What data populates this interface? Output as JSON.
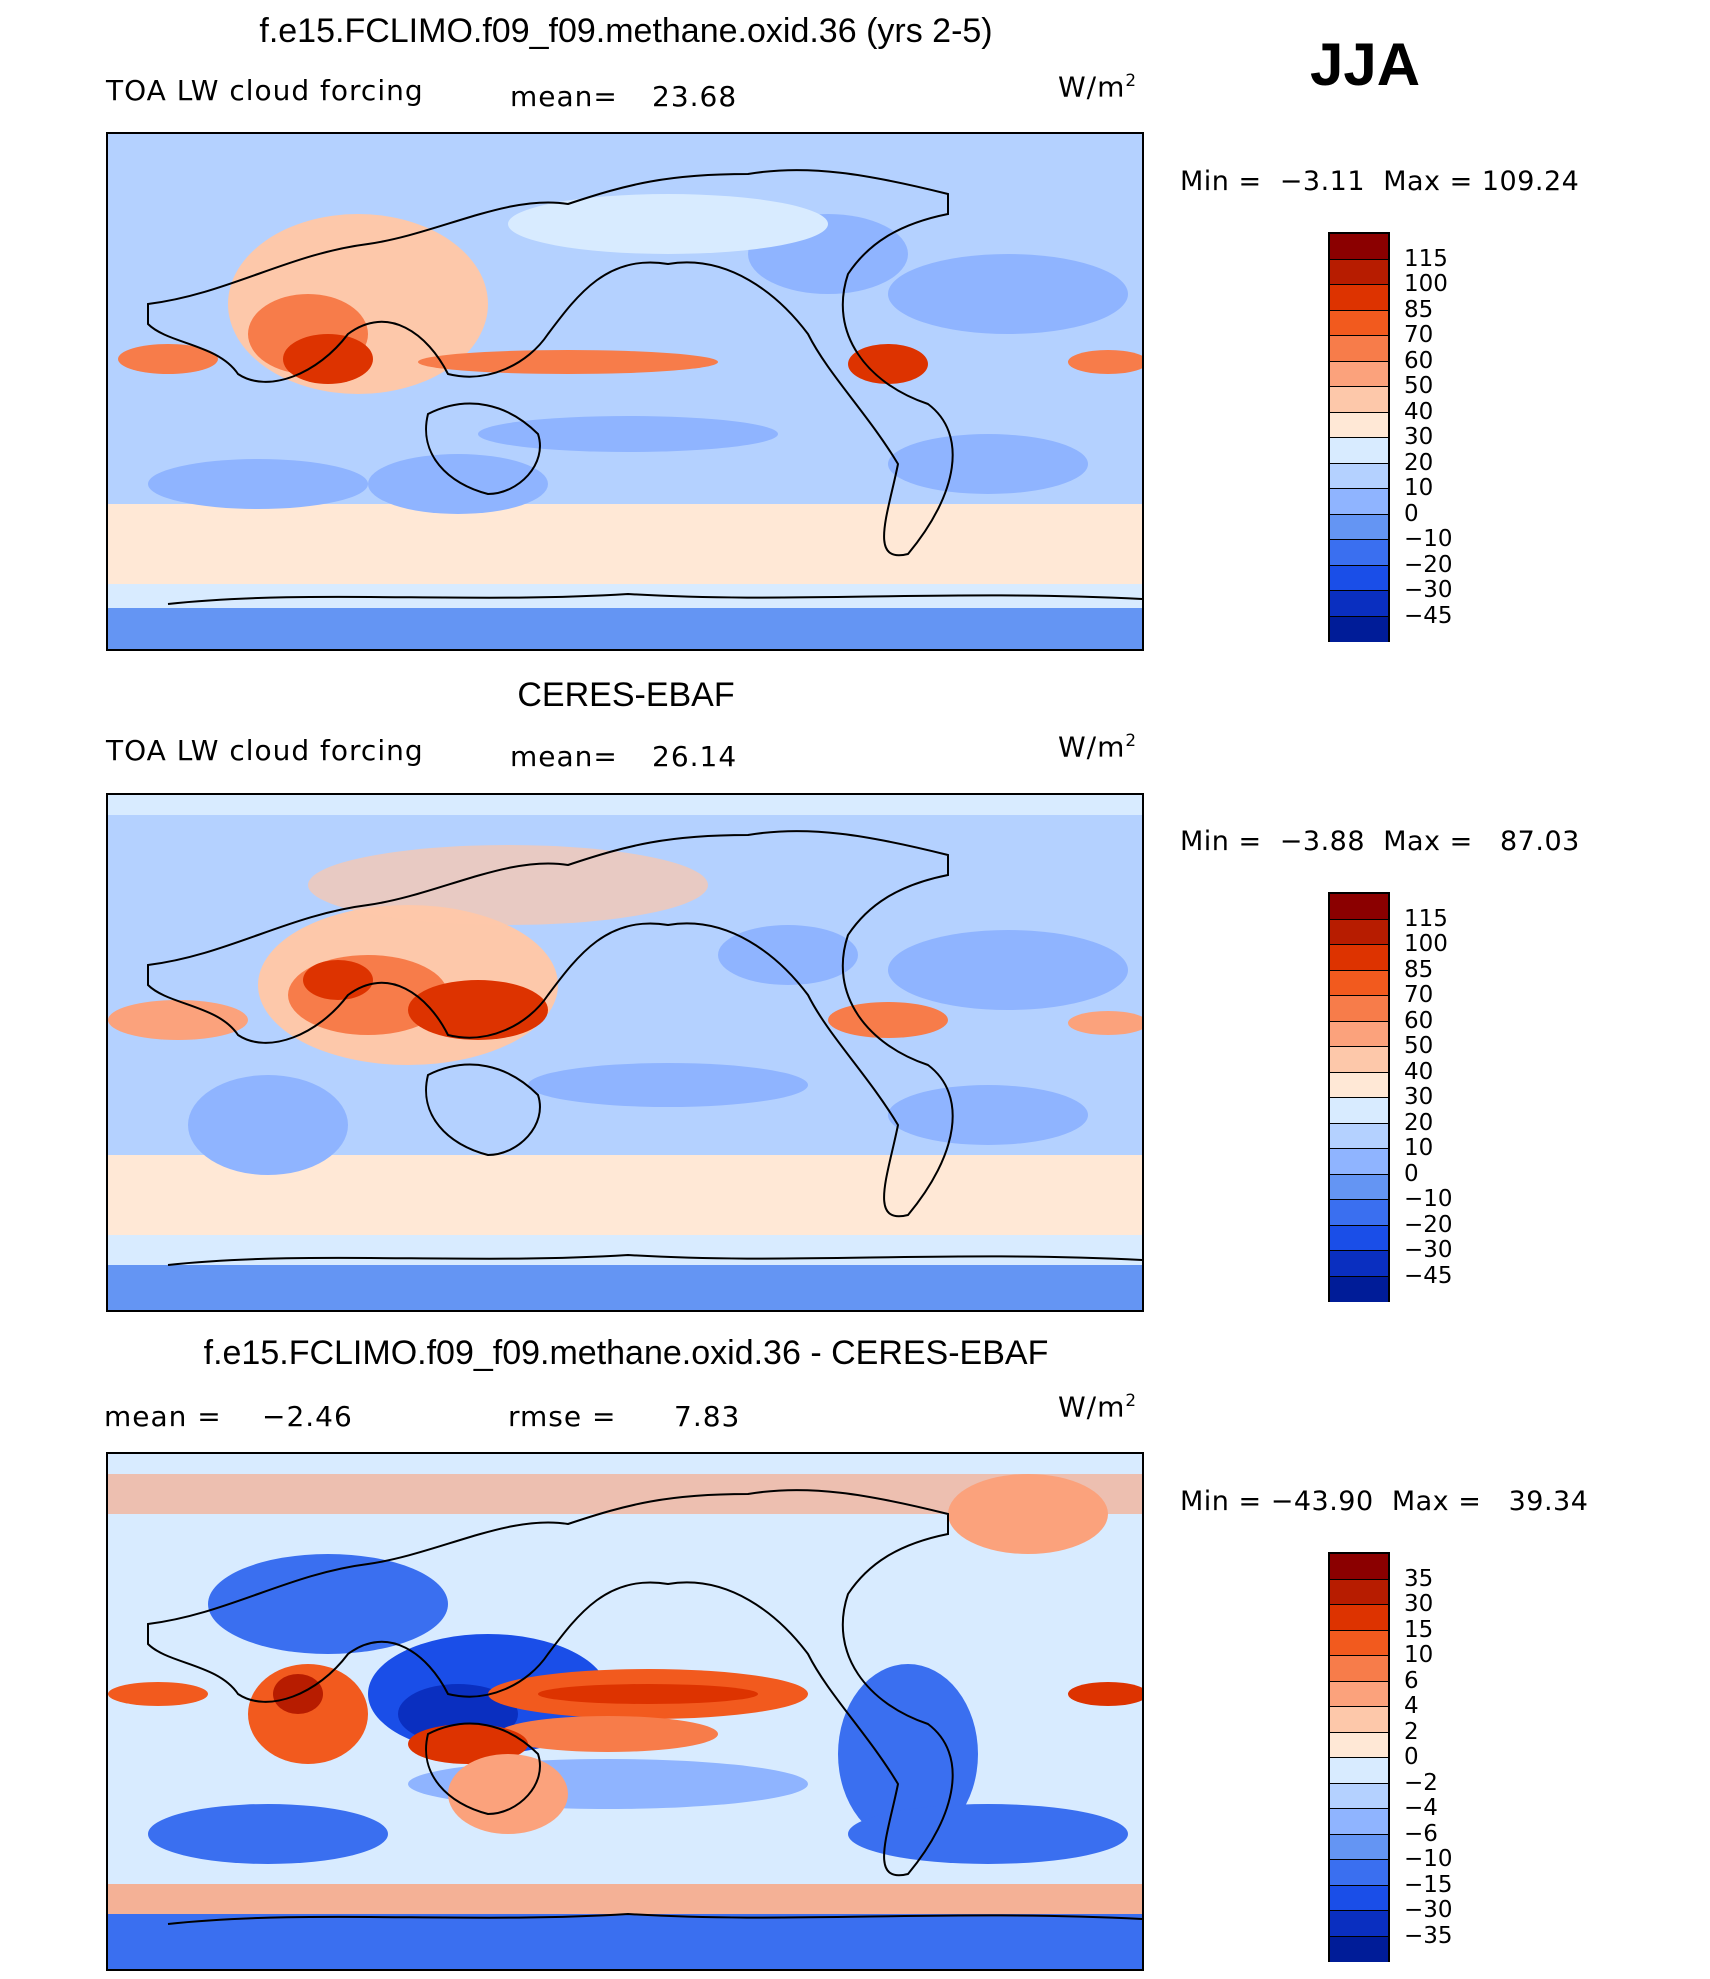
{
  "season": "JJA",
  "panels": [
    {
      "title": "f.e15.FCLIMO.f09_f09.methane.oxid.36 (yrs 2-5)",
      "left_label": "TOA LW cloud forcing",
      "stat1_label": "mean=",
      "stat1_value": "23.68",
      "stat2_label": "",
      "stat2_value": "",
      "units_base": "W/m",
      "units_exp": "2",
      "min_label": "Min =",
      "min_value": "−3.11",
      "max_label": "Max =",
      "max_value": "109.24",
      "colorbar_labels": [
        "115",
        "100",
        "85",
        "70",
        "60",
        "50",
        "40",
        "30",
        "20",
        "10",
        "0",
        "−10",
        "−20",
        "−30",
        "−45"
      ],
      "colorbar_colors": [
        "#8b0000",
        "#b71c00",
        "#dd3300",
        "#f25a1e",
        "#f77c4a",
        "#fba27c",
        "#fdc8aa",
        "#ffe8d6",
        "#d8ebff",
        "#b4d1ff",
        "#8fb4ff",
        "#6495f3",
        "#3a6ff0",
        "#1a4ee8",
        "#0a2fc0",
        "#001c98",
        "#000a78"
      ],
      "background": "#b4d1ff"
    },
    {
      "title": "CERES-EBAF",
      "left_label": "TOA LW cloud forcing",
      "stat1_label": "mean=",
      "stat1_value": "26.14",
      "stat2_label": "",
      "stat2_value": "",
      "units_base": "W/m",
      "units_exp": "2",
      "min_label": "Min =",
      "min_value": "−3.88",
      "max_label": "Max =",
      "max_value": "87.03",
      "colorbar_labels": [
        "115",
        "100",
        "85",
        "70",
        "60",
        "50",
        "40",
        "30",
        "20",
        "10",
        "0",
        "−10",
        "−20",
        "−30",
        "−45"
      ],
      "colorbar_colors": [
        "#8b0000",
        "#b71c00",
        "#dd3300",
        "#f25a1e",
        "#f77c4a",
        "#fba27c",
        "#fdc8aa",
        "#ffe8d6",
        "#d8ebff",
        "#b4d1ff",
        "#8fb4ff",
        "#6495f3",
        "#3a6ff0",
        "#1a4ee8",
        "#0a2fc0",
        "#001c98",
        "#000a78"
      ],
      "background": "#b4d1ff"
    },
    {
      "title": "f.e15.FCLIMO.f09_f09.methane.oxid.36 - CERES-EBAF",
      "left_label": "",
      "stat1_label": "mean =",
      "stat1_value": "−2.46",
      "stat2_label": "rmse =",
      "stat2_value": "7.83",
      "units_base": "W/m",
      "units_exp": "2",
      "min_label": "Min =",
      "min_value": "−43.90",
      "max_label": "Max =",
      "max_value": "39.34",
      "colorbar_labels": [
        "35",
        "30",
        "15",
        "10",
        "6",
        "4",
        "2",
        "0",
        "−2",
        "−4",
        "−6",
        "−10",
        "−15",
        "−30",
        "−35"
      ],
      "colorbar_colors": [
        "#8b0000",
        "#b71c00",
        "#dd3300",
        "#f25a1e",
        "#f77c4a",
        "#fba27c",
        "#fdc8aa",
        "#ffe8d6",
        "#d8ebff",
        "#b4d1ff",
        "#8fb4ff",
        "#6495f3",
        "#3a6ff0",
        "#1a4ee8",
        "#0a2fc0",
        "#001c98",
        "#000a78"
      ],
      "background": "#d8ebff"
    }
  ]
}
